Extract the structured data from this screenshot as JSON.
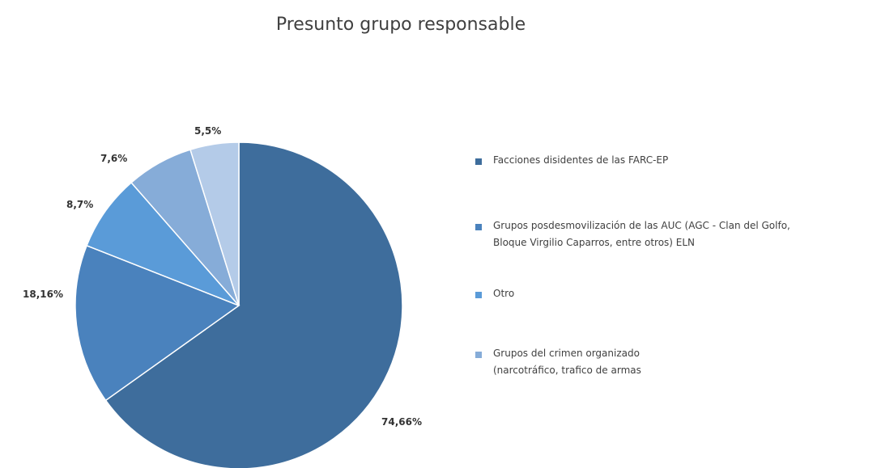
{
  "chart_data": {
    "type": "pie",
    "title": "Presunto grupo responsable",
    "slices": [
      {
        "name": "Facciones disidentes de las FARC-EP",
        "value": 74.66,
        "label": "74,66%",
        "color": "#3e6d9c"
      },
      {
        "name": "Grupos posdesmovilización de las AUC  (AGC - Clan del Golfo, Bloque Virgilio Caparros, entre otros) ELN",
        "value": 18.16,
        "label": "18,16%",
        "color": "#4a82bd"
      },
      {
        "name": "Otro",
        "value": 8.7,
        "label": "8,7%",
        "color": "#5a9bd8"
      },
      {
        "name": "Grupos del crimen organizado (narcotráfico, trafico de armas",
        "value": 7.6,
        "label": "7,6%",
        "color": "#86acd8"
      },
      {
        "name": "",
        "value": 5.5,
        "label": "5,5%",
        "color": "#b4cbe8"
      }
    ],
    "legend": [
      {
        "lines": [
          "Facciones disidentes de las FARC-EP"
        ],
        "color": "#3e6d9c"
      },
      {
        "lines": [
          "Grupos posdesmovilización de las AUC  (AGC - Clan del Golfo,",
          "Bloque Virgilio Caparros, entre otros) ELN"
        ],
        "color": "#4a82bd"
      },
      {
        "lines": [
          "Otro"
        ],
        "color": "#5a9bd8"
      },
      {
        "lines": [
          "Grupos del crimen organizado",
          "(narcotráfico, trafico de armas"
        ],
        "color": "#86acd8"
      }
    ],
    "legend_position": "right"
  }
}
